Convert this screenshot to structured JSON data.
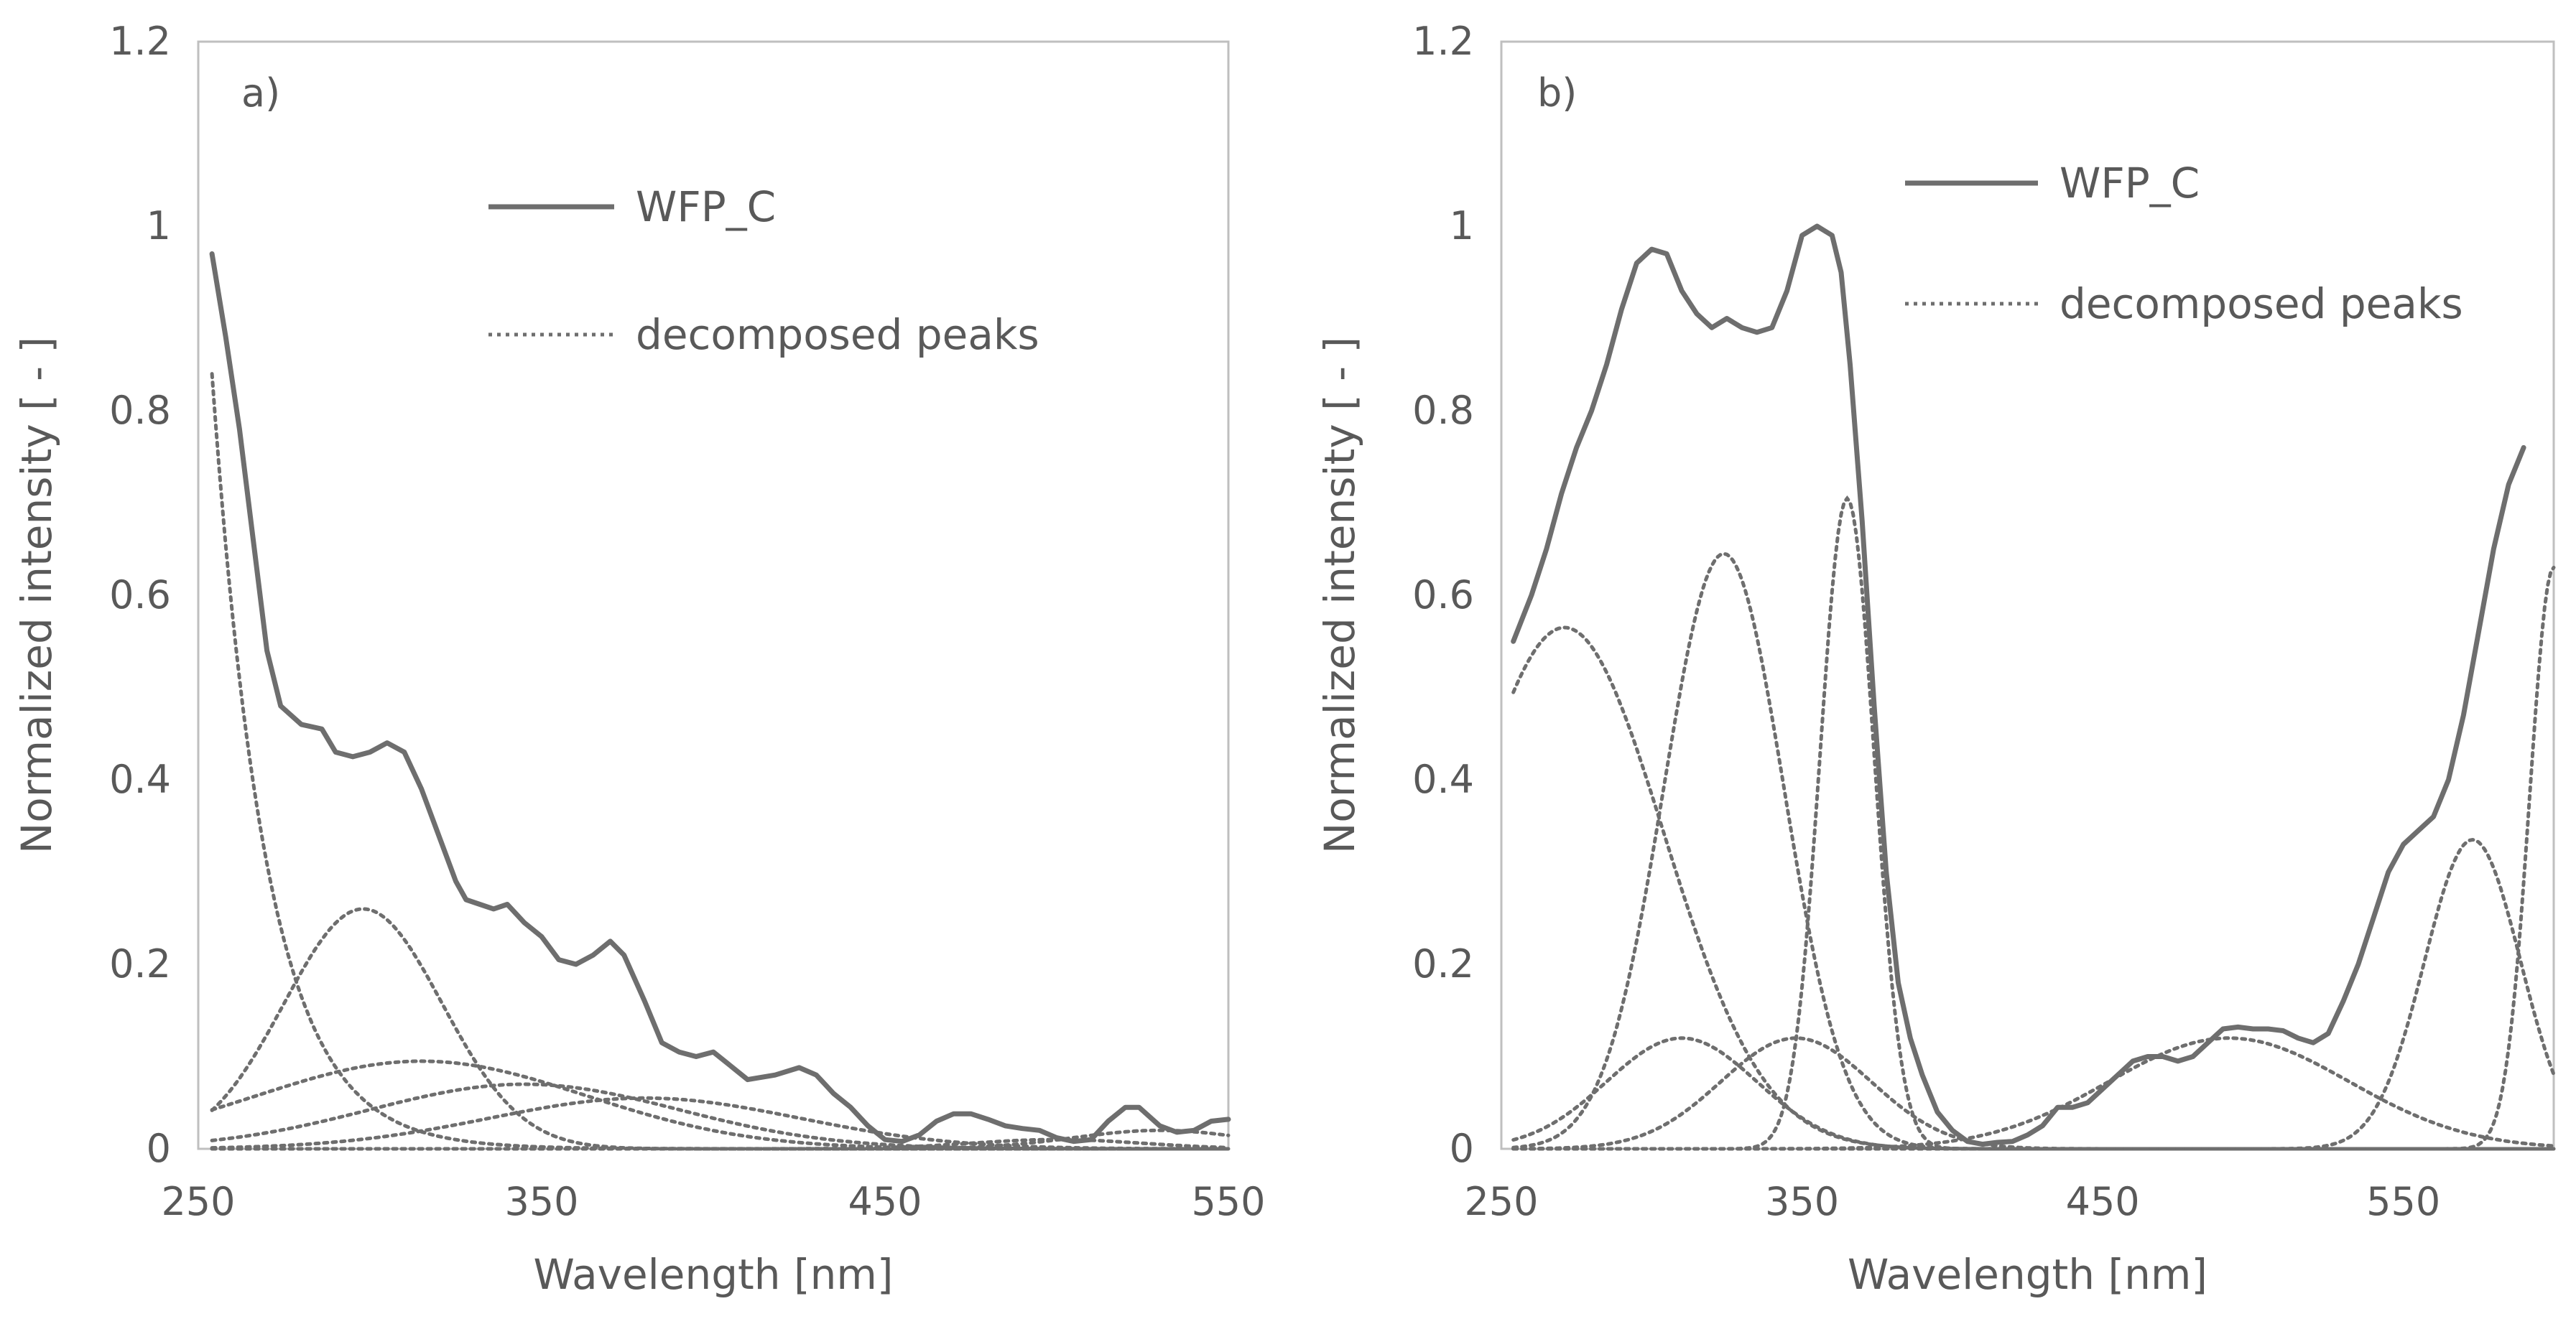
{
  "chart_data": [
    {
      "type": "line",
      "panel_label": "a)",
      "xlabel": "Wavelength [nm]",
      "ylabel": "Normalized intensity [ - ]",
      "xlim": [
        250,
        550
      ],
      "ylim": [
        0,
        1.2
      ],
      "x_ticks": [
        "250",
        "350",
        "450",
        "550"
      ],
      "y_ticks": [
        "0",
        "0.2",
        "0.4",
        "0.6",
        "0.8",
        "1",
        "1.2"
      ],
      "legend_position": "top-right",
      "legend": [
        {
          "label": "WFP_C",
          "style": "solid"
        },
        {
          "label": "decomposed peaks",
          "style": "dotted"
        }
      ],
      "series": [
        {
          "name": "WFP_C",
          "style": "solid",
          "color": "#6e6e6e",
          "points": [
            [
              254,
              0.97
            ],
            [
              258,
              0.88
            ],
            [
              262,
              0.78
            ],
            [
              266,
              0.66
            ],
            [
              270,
              0.54
            ],
            [
              274,
              0.48
            ],
            [
              280,
              0.46
            ],
            [
              286,
              0.455
            ],
            [
              290,
              0.43
            ],
            [
              295,
              0.425
            ],
            [
              300,
              0.43
            ],
            [
              305,
              0.44
            ],
            [
              310,
              0.43
            ],
            [
              315,
              0.39
            ],
            [
              320,
              0.34
            ],
            [
              325,
              0.29
            ],
            [
              328,
              0.27
            ],
            [
              332,
              0.265
            ],
            [
              336,
              0.26
            ],
            [
              340,
              0.265
            ],
            [
              345,
              0.245
            ],
            [
              350,
              0.23
            ],
            [
              355,
              0.205
            ],
            [
              360,
              0.2
            ],
            [
              365,
              0.21
            ],
            [
              370,
              0.225
            ],
            [
              374,
              0.21
            ],
            [
              380,
              0.16
            ],
            [
              385,
              0.115
            ],
            [
              390,
              0.105
            ],
            [
              395,
              0.1
            ],
            [
              400,
              0.105
            ],
            [
              405,
              0.09
            ],
            [
              410,
              0.075
            ],
            [
              418,
              0.08
            ],
            [
              425,
              0.088
            ],
            [
              430,
              0.08
            ],
            [
              435,
              0.06
            ],
            [
              440,
              0.045
            ],
            [
              445,
              0.025
            ],
            [
              450,
              0.01
            ],
            [
              455,
              0.008
            ],
            [
              460,
              0.015
            ],
            [
              465,
              0.03
            ],
            [
              470,
              0.038
            ],
            [
              475,
              0.038
            ],
            [
              480,
              0.032
            ],
            [
              485,
              0.025
            ],
            [
              490,
              0.022
            ],
            [
              495,
              0.02
            ],
            [
              500,
              0.012
            ],
            [
              505,
              0.008
            ],
            [
              510,
              0.01
            ],
            [
              515,
              0.03
            ],
            [
              520,
              0.045
            ],
            [
              524,
              0.045
            ],
            [
              530,
              0.025
            ],
            [
              535,
              0.018
            ],
            [
              540,
              0.02
            ],
            [
              545,
              0.03
            ],
            [
              550,
              0.032
            ]
          ]
        },
        {
          "name": "decomposed peaks",
          "style": "dotted",
          "color": "#6e6e6e",
          "peaks": [
            {
              "decay_start": 254,
              "amplitude": 0.84,
              "decay_constant": 16
            },
            {
              "center": 298,
              "amplitude": 0.26,
              "sigma": 23
            },
            {
              "center": 315,
              "amplitude": 0.095,
              "sigma": 48
            },
            {
              "center": 345,
              "amplitude": 0.07,
              "sigma": 45
            },
            {
              "center": 380,
              "amplitude": 0.055,
              "sigma": 45
            },
            {
              "center": 500,
              "amplitude": 0.01,
              "sigma": 25
            },
            {
              "center": 530,
              "amplitude": 0.02,
              "sigma": 25
            }
          ]
        }
      ]
    },
    {
      "type": "line",
      "panel_label": "b)",
      "xlabel": "Wavelength [nm]",
      "ylabel": "Normalized intensity [ - ]",
      "xlim": [
        250,
        600
      ],
      "ylim": [
        0,
        1.2
      ],
      "x_ticks": [
        "250",
        "350",
        "450",
        "550"
      ],
      "y_ticks": [
        "0",
        "0.2",
        "0.4",
        "0.6",
        "0.8",
        "1",
        "1.2"
      ],
      "legend_position": "top-right",
      "legend": [
        {
          "label": "WFP_C",
          "style": "solid"
        },
        {
          "label": "decomposed peaks",
          "style": "dotted"
        }
      ],
      "series": [
        {
          "name": "WFP_C",
          "style": "solid",
          "color": "#6e6e6e",
          "points": [
            [
              254,
              0.55
            ],
            [
              260,
              0.6
            ],
            [
              265,
              0.65
            ],
            [
              270,
              0.71
            ],
            [
              275,
              0.76
            ],
            [
              280,
              0.8
            ],
            [
              285,
              0.85
            ],
            [
              290,
              0.91
            ],
            [
              295,
              0.96
            ],
            [
              300,
              0.975
            ],
            [
              305,
              0.97
            ],
            [
              310,
              0.93
            ],
            [
              315,
              0.905
            ],
            [
              320,
              0.89
            ],
            [
              325,
              0.9
            ],
            [
              330,
              0.89
            ],
            [
              335,
              0.885
            ],
            [
              340,
              0.89
            ],
            [
              345,
              0.93
            ],
            [
              350,
              0.99
            ],
            [
              355,
              1.0
            ],
            [
              360,
              0.99
            ],
            [
              363,
              0.95
            ],
            [
              366,
              0.85
            ],
            [
              370,
              0.68
            ],
            [
              374,
              0.48
            ],
            [
              378,
              0.3
            ],
            [
              382,
              0.18
            ],
            [
              386,
              0.12
            ],
            [
              390,
              0.08
            ],
            [
              395,
              0.04
            ],
            [
              400,
              0.02
            ],
            [
              405,
              0.008
            ],
            [
              410,
              0.005
            ],
            [
              415,
              0.007
            ],
            [
              420,
              0.008
            ],
            [
              425,
              0.015
            ],
            [
              430,
              0.025
            ],
            [
              435,
              0.045
            ],
            [
              440,
              0.045
            ],
            [
              445,
              0.05
            ],
            [
              450,
              0.065
            ],
            [
              455,
              0.08
            ],
            [
              460,
              0.095
            ],
            [
              465,
              0.1
            ],
            [
              470,
              0.1
            ],
            [
              475,
              0.095
            ],
            [
              480,
              0.1
            ],
            [
              485,
              0.115
            ],
            [
              490,
              0.13
            ],
            [
              495,
              0.132
            ],
            [
              500,
              0.13
            ],
            [
              505,
              0.13
            ],
            [
              510,
              0.128
            ],
            [
              515,
              0.12
            ],
            [
              520,
              0.115
            ],
            [
              525,
              0.125
            ],
            [
              530,
              0.16
            ],
            [
              535,
              0.2
            ],
            [
              540,
              0.25
            ],
            [
              545,
              0.3
            ],
            [
              550,
              0.33
            ],
            [
              555,
              0.345
            ],
            [
              560,
              0.36
            ],
            [
              565,
              0.4
            ],
            [
              570,
              0.47
            ],
            [
              575,
              0.56
            ],
            [
              580,
              0.65
            ],
            [
              585,
              0.72
            ],
            [
              590,
              0.76
            ]
          ]
        },
        {
          "name": "decomposed peaks",
          "style": "dotted",
          "color": "#6e6e6e",
          "peaks": [
            {
              "center": 271,
              "amplitude": 0.565,
              "sigma": 33
            },
            {
              "center": 324,
              "amplitude": 0.645,
              "sigma": 20
            },
            {
              "center": 365,
              "amplitude": 0.705,
              "sigma": 9
            },
            {
              "center": 310,
              "amplitude": 0.12,
              "sigma": 25
            },
            {
              "center": 348,
              "amplitude": 0.12,
              "sigma": 25
            },
            {
              "center": 492,
              "amplitude": 0.12,
              "sigma": 40
            },
            {
              "center": 573,
              "amplitude": 0.335,
              "sigma": 16
            },
            {
              "center": 600,
              "amplitude": 0.63,
              "sigma": 8
            }
          ]
        }
      ]
    }
  ]
}
